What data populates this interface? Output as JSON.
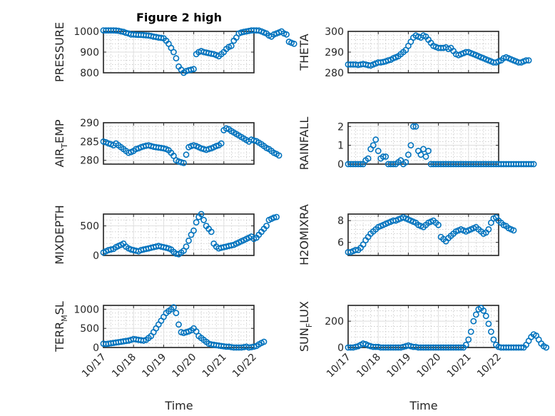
{
  "figure": {
    "title": "Figure 2 high",
    "xlabel": "Time",
    "marker_color": "#0072BD"
  },
  "chart_data": [
    {
      "type": "scatter",
      "marker": "circle",
      "ylabel": "PRESSURE",
      "x_ticks": [
        "10/17",
        "10/18",
        "10/19",
        "10/20",
        "10/21",
        "10/22"
      ],
      "xlim": [
        "10/17",
        "10/22"
      ],
      "y_ticks": [
        800,
        900,
        1000
      ],
      "ylim": [
        800,
        1000
      ],
      "grid": true,
      "minor_grid": true,
      "x_start": "10/17",
      "x_step_days": 0.0833,
      "values": [
        1005,
        1005,
        1005,
        1005,
        1005,
        1004,
        1003,
        1000,
        998,
        993,
        990,
        985,
        985,
        984,
        983,
        983,
        982,
        981,
        980,
        978,
        975,
        973,
        970,
        969,
        967,
        955,
        940,
        920,
        900,
        870,
        830,
        815,
        800,
        808,
        812,
        815,
        818,
        890,
        900,
        905,
        900,
        898,
        895,
        892,
        890,
        885,
        880,
        890,
        900,
        915,
        925,
        930,
        955,
        970,
        990,
        995,
        998,
        1000,
        1002,
        1005,
        1005,
        1005,
        1004,
        1000,
        995,
        990,
        980,
        975,
        985,
        990,
        995,
        1000,
        990,
        985,
        950,
        945,
        940
      ]
    },
    {
      "type": "scatter",
      "marker": "circle",
      "ylabel": "THETA",
      "x_ticks": [
        "10/17",
        "10/18",
        "10/19",
        "10/20",
        "10/21",
        "10/22"
      ],
      "xlim": [
        "10/17",
        "10/22"
      ],
      "y_ticks": [
        280,
        290,
        300
      ],
      "ylim": [
        280,
        300
      ],
      "grid": true,
      "minor_grid": true,
      "x_start": "10/17",
      "x_step_days": 0.0833,
      "values": [
        284,
        284,
        284,
        284,
        283.8,
        284,
        284.2,
        284,
        283.7,
        283.5,
        284,
        284.5,
        285,
        285,
        285.2,
        285.5,
        286,
        286.3,
        287,
        287.5,
        288,
        289,
        290,
        291,
        293,
        295,
        297,
        298,
        297.5,
        297,
        298,
        297.5,
        296,
        294.5,
        293,
        292.5,
        292,
        292,
        292,
        292.3,
        291.5,
        292,
        290.5,
        289,
        288.5,
        289,
        289.5,
        290,
        290,
        289.5,
        289,
        288.5,
        288,
        287.5,
        287,
        286.5,
        286,
        285.5,
        285,
        285,
        285.5,
        286,
        287,
        287.5,
        287,
        286.5,
        286,
        285.5,
        285,
        285,
        285.5,
        286,
        286
      ]
    },
    {
      "type": "scatter",
      "marker": "circle",
      "ylabel": "AIR_TEMP",
      "ylabel_main": "AIR",
      "ylabel_sub": "T",
      "ylabel_rest": "EMP",
      "x_ticks": [
        "10/17",
        "10/18",
        "10/19",
        "10/20",
        "10/21",
        "10/22"
      ],
      "xlim": [
        "10/17",
        "10/22"
      ],
      "y_ticks": [
        280,
        285,
        290
      ],
      "ylim": [
        279,
        290
      ],
      "grid": true,
      "minor_grid": true,
      "x_start": "10/17",
      "x_step_days": 0.0833,
      "values": [
        285,
        284.8,
        284.5,
        284.3,
        284,
        284.5,
        284,
        283.5,
        283,
        282.5,
        282,
        282.2,
        282.5,
        283,
        283.2,
        283.5,
        283.7,
        283.9,
        284,
        283.8,
        283.6,
        283.5,
        283.4,
        283.3,
        283.2,
        283,
        282.7,
        282,
        281.2,
        280,
        279.7,
        279.5,
        279.3,
        281.5,
        283.5,
        283.8,
        284,
        283.8,
        283.5,
        283.2,
        283,
        282.8,
        283,
        283.2,
        283.5,
        283.8,
        284,
        284.5,
        288,
        288.5,
        288.3,
        287.8,
        287.4,
        287,
        286.6,
        286.2,
        285.8,
        285.4,
        285,
        285.5,
        285.3,
        285.1,
        284.7,
        284.3,
        283.8,
        283.3,
        283,
        282.5,
        282,
        281.7,
        281.3
      ]
    },
    {
      "type": "scatter",
      "marker": "circle",
      "ylabel": "RAINFALL",
      "x_ticks": [
        "10/17",
        "10/18",
        "10/19",
        "10/20",
        "10/21",
        "10/22"
      ],
      "xlim": [
        "10/17",
        "10/22"
      ],
      "y_ticks": [
        0,
        1,
        2
      ],
      "ylim": [
        0,
        2.2
      ],
      "grid": true,
      "minor_grid": true,
      "x_start": "10/17",
      "x_step_days": 0.0833,
      "values": [
        0,
        0,
        0,
        0,
        0,
        0,
        0,
        0.2,
        0.3,
        0.8,
        1,
        1.3,
        0.7,
        0.3,
        0.4,
        0.4,
        0,
        0,
        0,
        0,
        0.1,
        0.2,
        0,
        0.1,
        0.5,
        1,
        2,
        2,
        0.7,
        0.5,
        0.8,
        0.4,
        0.7,
        0,
        0,
        0,
        0,
        0,
        0,
        0,
        0,
        0,
        0,
        0,
        0,
        0,
        0,
        0,
        0,
        0,
        0,
        0,
        0,
        0,
        0,
        0,
        0,
        0,
        0,
        0,
        0,
        0,
        0,
        0,
        0,
        0,
        0,
        0,
        0,
        0,
        0,
        0,
        0,
        0,
        0
      ]
    },
    {
      "type": "scatter",
      "marker": "circle",
      "ylabel": "MIXDEPTH",
      "x_ticks": [
        "10/17",
        "10/18",
        "10/19",
        "10/20",
        "10/21",
        "10/22"
      ],
      "xlim": [
        "10/17",
        "10/22"
      ],
      "y_ticks": [
        0,
        500
      ],
      "ylim": [
        0,
        700
      ],
      "grid": true,
      "minor_grid": true,
      "x_start": "10/17",
      "x_step_days": 0.0833,
      "values": [
        50,
        70,
        90,
        100,
        110,
        140,
        160,
        180,
        200,
        150,
        120,
        100,
        90,
        80,
        70,
        90,
        100,
        110,
        120,
        130,
        140,
        150,
        160,
        150,
        140,
        130,
        120,
        100,
        60,
        30,
        20,
        50,
        80,
        150,
        250,
        350,
        420,
        560,
        650,
        700,
        600,
        500,
        450,
        400,
        200,
        150,
        120,
        130,
        140,
        150,
        160,
        170,
        180,
        200,
        220,
        240,
        260,
        280,
        300,
        320,
        280,
        300,
        350,
        400,
        450,
        500,
        600,
        620,
        640,
        650
      ]
    },
    {
      "type": "scatter",
      "marker": "circle",
      "ylabel": "H2OMIXRA",
      "x_ticks": [
        "10/17",
        "10/18",
        "10/19",
        "10/20",
        "10/21",
        "10/22"
      ],
      "xlim": [
        "10/17",
        "10/22"
      ],
      "y_ticks": [
        6,
        8
      ],
      "ylim": [
        4.8,
        8.6
      ],
      "grid": true,
      "minor_grid": true,
      "x_start": "10/17",
      "x_step_days": 0.0833,
      "values": [
        5.1,
        5.1,
        5.2,
        5.3,
        5.3,
        5.5,
        5.8,
        6.2,
        6.5,
        6.8,
        7,
        7.2,
        7.4,
        7.5,
        7.6,
        7.7,
        7.8,
        7.9,
        8,
        8,
        8.1,
        8.2,
        8.3,
        8.2,
        8.1,
        8,
        7.9,
        7.8,
        7.6,
        7.5,
        7.4,
        7.6,
        7.8,
        7.9,
        8,
        7.8,
        7.6,
        6.5,
        6.3,
        6.1,
        6.4,
        6.6,
        6.8,
        7,
        7.1,
        7.2,
        7.1,
        7.0,
        7.1,
        7.2,
        7.3,
        7.4,
        7.2,
        7.0,
        6.8,
        6.9,
        7.2,
        7.8,
        8.2,
        8.3,
        8.0,
        7.8,
        7.6,
        7.5,
        7.3,
        7.2,
        7.1
      ]
    },
    {
      "type": "scatter",
      "marker": "circle",
      "ylabel": "TERR_MSL",
      "ylabel_main": "TERR",
      "ylabel_sub": "M",
      "ylabel_rest": "SL",
      "x_ticks": [
        "10/17",
        "10/18",
        "10/19",
        "10/20",
        "10/21",
        "10/22"
      ],
      "xlim": [
        "10/17",
        "10/22"
      ],
      "y_ticks": [
        0,
        500,
        1000
      ],
      "ylim": [
        0,
        1100
      ],
      "grid": true,
      "minor_grid": true,
      "x_start": "10/17",
      "x_step_days": 0.0833,
      "values": [
        100,
        90,
        100,
        110,
        120,
        130,
        140,
        150,
        160,
        170,
        180,
        200,
        220,
        210,
        200,
        190,
        180,
        200,
        250,
        300,
        400,
        500,
        600,
        700,
        800,
        900,
        950,
        1000,
        1050,
        900,
        600,
        400,
        380,
        400,
        420,
        450,
        500,
        420,
        300,
        250,
        200,
        150,
        100,
        80,
        70,
        60,
        50,
        40,
        30,
        20,
        20,
        10,
        0,
        0,
        0,
        0,
        10,
        20,
        0,
        10,
        20,
        40,
        80,
        120,
        150
      ]
    },
    {
      "type": "scatter",
      "marker": "circle",
      "ylabel": "SUN_FLUX",
      "ylabel_main": "SUN",
      "ylabel_sub": "F",
      "ylabel_rest": "LUX",
      "x_ticks": [
        "10/17",
        "10/18",
        "10/19",
        "10/20",
        "10/21",
        "10/22"
      ],
      "xlim": [
        "10/17",
        "10/22"
      ],
      "y_ticks": [
        0,
        200
      ],
      "ylim": [
        0,
        320
      ],
      "grid": true,
      "minor_grid": true,
      "x_start": "10/17",
      "x_step_days": 0.0833,
      "values": [
        0,
        0,
        0,
        5,
        10,
        20,
        30,
        25,
        15,
        10,
        5,
        5,
        5,
        0,
        0,
        0,
        0,
        0,
        0,
        0,
        0,
        0,
        5,
        10,
        15,
        10,
        5,
        5,
        0,
        0,
        0,
        0,
        0,
        0,
        0,
        0,
        0,
        0,
        0,
        0,
        0,
        0,
        0,
        0,
        0,
        0,
        0,
        20,
        60,
        120,
        200,
        250,
        290,
        300,
        280,
        240,
        180,
        120,
        60,
        20,
        5,
        0,
        0,
        0,
        0,
        0,
        0,
        0,
        0,
        0,
        0,
        20,
        50,
        80,
        100,
        90,
        60,
        30,
        10,
        0
      ]
    }
  ]
}
